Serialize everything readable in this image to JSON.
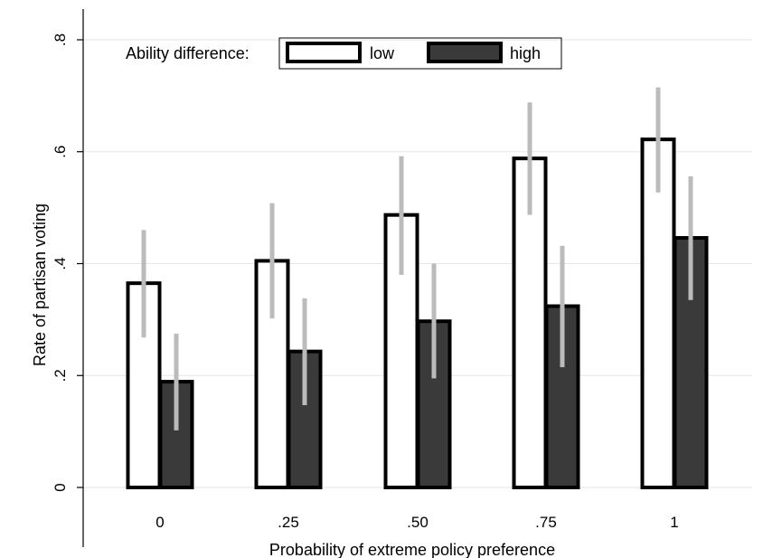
{
  "chart_data": {
    "type": "bar",
    "title": "",
    "xlabel": "Probability of extreme policy preference",
    "ylabel": "Rate of partisan voting",
    "categories": [
      "0",
      ".25",
      ".50",
      ".75",
      "1"
    ],
    "ylim": [
      0,
      0.8
    ],
    "yticks": [
      0,
      0.2,
      0.4,
      0.6,
      0.8
    ],
    "ytick_labels": [
      "0",
      ".2",
      ".4",
      ".6",
      ".8"
    ],
    "grid": true,
    "legend": {
      "title": "Ability difference:",
      "position": "top-left"
    },
    "series": [
      {
        "name": "low",
        "fill": "#ffffff",
        "values": [
          0.365,
          0.405,
          0.487,
          0.588,
          0.622
        ],
        "ci_low": [
          0.268,
          0.302,
          0.38,
          0.487,
          0.527
        ],
        "ci_high": [
          0.46,
          0.508,
          0.592,
          0.688,
          0.715
        ]
      },
      {
        "name": "high",
        "fill": "#3a3a3a",
        "values": [
          0.189,
          0.243,
          0.297,
          0.324,
          0.446
        ],
        "ci_low": [
          0.102,
          0.147,
          0.195,
          0.215,
          0.335
        ],
        "ci_high": [
          0.275,
          0.338,
          0.4,
          0.432,
          0.556
        ]
      }
    ],
    "colors": {
      "bar_outline": "#000000",
      "error_bar": "#bbbbbb",
      "grid": "#e6e6e6"
    }
  }
}
